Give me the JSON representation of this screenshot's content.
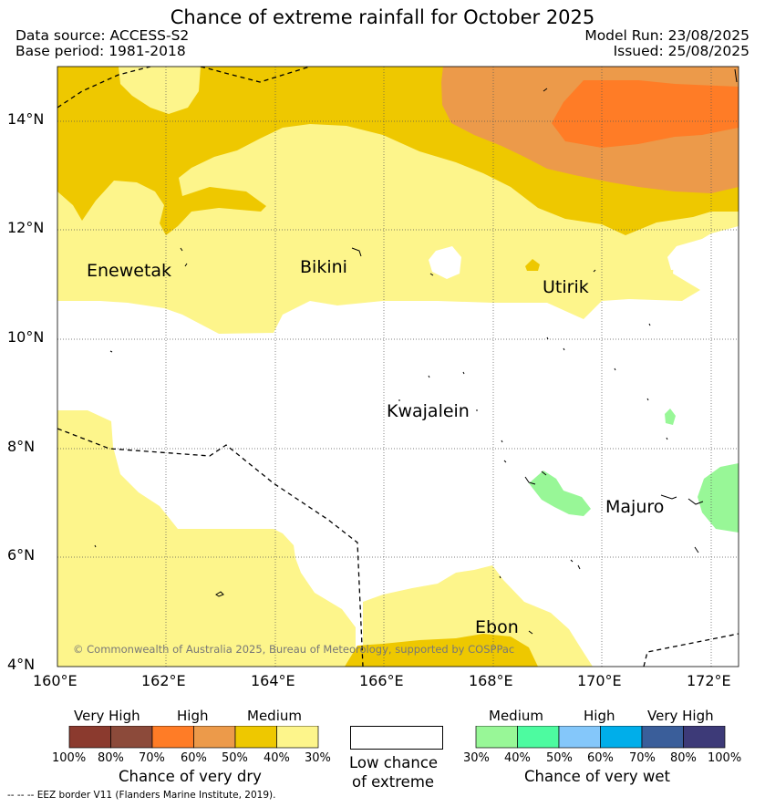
{
  "title": "Chance of extreme rainfall for October 2025",
  "header": {
    "data_source": "Data source: ACCESS-S2",
    "base_period": "Base period: 1981-2018",
    "model_run": "Model Run: 23/08/2025",
    "issued": "Issued: 25/08/2025"
  },
  "map": {
    "lon_ticks": [
      "160°E",
      "162°E",
      "164°E",
      "166°E",
      "168°E",
      "170°E",
      "172°E"
    ],
    "lat_ticks": [
      "14°N",
      "12°N",
      "10°N",
      "8°N",
      "6°N",
      "4°N"
    ],
    "places": {
      "enewetak": "Enewetak",
      "bikini": "Bikini",
      "utirik": "Utirik",
      "kwajalein": "Kwajalein",
      "majuro": "Majuro",
      "ebon": "Ebon"
    },
    "copyright": "© Commonwealth of Australia 2025, Bureau of Meteorology, supported by COSPPac"
  },
  "colors": {
    "dry_very_high_1": "#8b3a2e",
    "dry_very_high_2": "#8c4a3a",
    "dry_high_1": "#ff7c26",
    "dry_high_2": "#ec9a4a",
    "dry_medium_1": "#eec800",
    "dry_medium_2": "#fdf58b",
    "wet_medium_1": "#98f797",
    "wet_medium_2": "#4dfba0",
    "wet_high_1": "#84c7fa",
    "wet_high_2": "#00aeea",
    "wet_very_high_1": "#3a5e9a",
    "wet_very_high_2": "#3d3a78"
  },
  "legend": {
    "dry": {
      "headers": [
        "Very High",
        "High",
        "Medium"
      ],
      "ticks": [
        "100%",
        "80%",
        "70%",
        "60%",
        "50%",
        "40%",
        "30%"
      ],
      "caption": "Chance of very dry"
    },
    "low": {
      "caption_line1": "Low chance",
      "caption_line2": "of extreme"
    },
    "wet": {
      "headers": [
        "Medium",
        "High",
        "Very High"
      ],
      "ticks": [
        "30%",
        "40%",
        "50%",
        "60%",
        "70%",
        "80%",
        "100%"
      ],
      "caption": "Chance of very wet"
    },
    "eez_note": "--  --  -- EEZ border V11 (Flanders Marine Institute, 2019)."
  }
}
